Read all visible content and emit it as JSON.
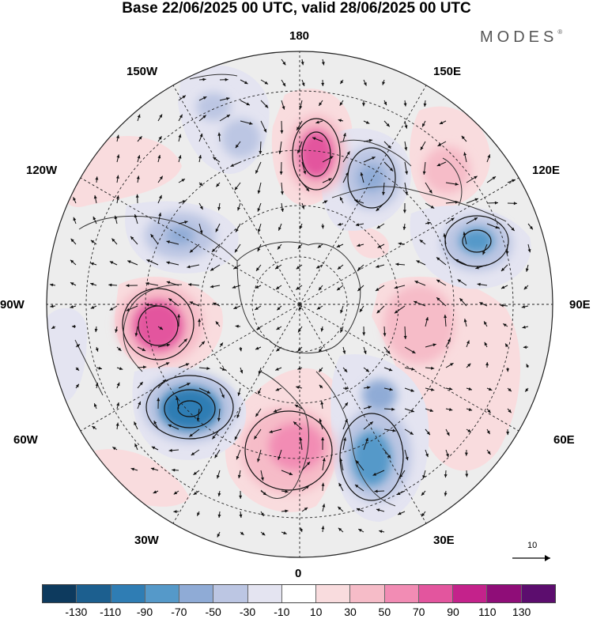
{
  "title": "Base 22/06/2025 00 UTC, valid 28/06/2025 00 UTC",
  "brand": "MODES",
  "brand_mark": "®",
  "longitude_labels": {
    "top": "180",
    "bottom": "0",
    "left": "90W",
    "right": "90E",
    "upper_left_a": "150W",
    "upper_left_b": "120W",
    "lower_left_a": "60W",
    "lower_left_b": "30W",
    "upper_right_a": "150E",
    "upper_right_b": "120E",
    "lower_right_a": "60E",
    "lower_right_b": "30E"
  },
  "reference_vector": {
    "value": "10",
    "icon": "arrow-right-icon"
  },
  "colorbar": {
    "colors": [
      "#0d3a5e",
      "#1c5f8f",
      "#2f7db4",
      "#5599c9",
      "#8fabd6",
      "#bcc6e3",
      "#e4e4f1",
      "#ffffff",
      "#f9dcde",
      "#f6bcc8",
      "#f28cb4",
      "#e3559e",
      "#c4228b",
      "#8f0d78",
      "#5c0d6e"
    ],
    "ticks": [
      "-130",
      "-110",
      "-90",
      "-70",
      "-50",
      "-30",
      "-10",
      "10",
      "30",
      "50",
      "70",
      "90",
      "110",
      "130"
    ]
  },
  "map": {
    "projection": "north-polar-stereographic",
    "background_color": "#ededed",
    "anomaly_centers": [
      {
        "sign": "positive",
        "level": "strong",
        "region": "near 180"
      },
      {
        "sign": "positive",
        "level": "strong",
        "region": "90W Canada"
      },
      {
        "sign": "positive",
        "level": "strong",
        "region": "North Atlantic / Europe"
      },
      {
        "sign": "negative",
        "level": "strong",
        "region": "60W-30W North Atlantic"
      },
      {
        "sign": "negative",
        "level": "moderate",
        "region": "30E Scandinavia / Russia"
      },
      {
        "sign": "negative",
        "level": "moderate",
        "region": "120E Siberia"
      },
      {
        "sign": "negative",
        "level": "moderate",
        "region": "150E"
      },
      {
        "sign": "negative",
        "level": "moderate",
        "region": "120W"
      },
      {
        "sign": "positive",
        "level": "weak",
        "region": "90E Central Asia"
      },
      {
        "sign": "positive",
        "level": "weak",
        "region": "120E-150E"
      }
    ]
  }
}
